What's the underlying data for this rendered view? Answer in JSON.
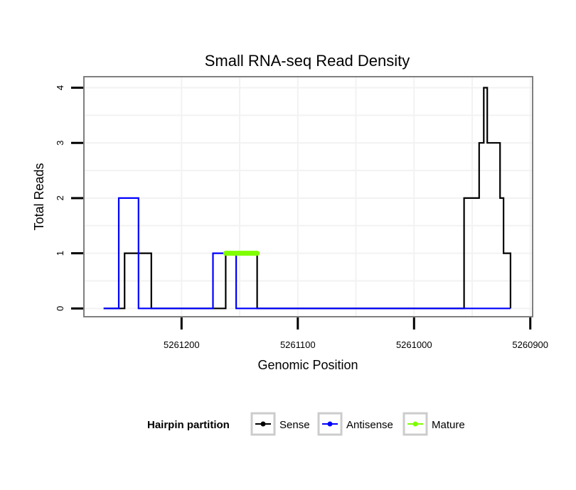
{
  "chart_data": {
    "type": "line",
    "title": "Small RNA-seq Read Density",
    "xlabel": "Genomic Position",
    "ylabel": "Total Reads",
    "x_reversed": true,
    "xlim": [
      5261284,
      5260898
    ],
    "ylim": [
      -0.15,
      4.2
    ],
    "x_ticks": [
      5261200,
      5261100,
      5261000,
      5260900
    ],
    "x_tick_labels": [
      "5261200",
      "5261100",
      "5261000",
      "5260900"
    ],
    "y_ticks": [
      0,
      1,
      2,
      3,
      4
    ],
    "y_tick_labels": [
      "0",
      "1",
      "2",
      "3",
      "4"
    ],
    "grid": true,
    "legend": {
      "title": "Hairpin partition",
      "placement": "bottom",
      "entries": [
        "Sense",
        "Antisense",
        "Mature"
      ]
    },
    "series": [
      {
        "name": "Sense",
        "color": "#000000",
        "step": true,
        "points": [
          [
            5261267,
            0
          ],
          [
            5261249,
            0
          ],
          [
            5261249,
            1
          ],
          [
            5261226,
            1
          ],
          [
            5261226,
            0
          ],
          [
            5261162,
            0
          ],
          [
            5261162,
            1
          ],
          [
            5261135,
            1
          ],
          [
            5261135,
            0
          ],
          [
            5260957,
            0
          ],
          [
            5260957,
            2
          ],
          [
            5260944,
            2
          ],
          [
            5260944,
            3
          ],
          [
            5260940,
            3
          ],
          [
            5260940,
            4
          ],
          [
            5260937,
            4
          ],
          [
            5260937,
            3
          ],
          [
            5260926,
            3
          ],
          [
            5260926,
            2
          ],
          [
            5260923,
            2
          ],
          [
            5260923,
            1
          ],
          [
            5260917,
            1
          ],
          [
            5260917,
            0
          ]
        ]
      },
      {
        "name": "Antisense",
        "color": "#0000ff",
        "step": true,
        "points": [
          [
            5261267,
            0
          ],
          [
            5261254,
            0
          ],
          [
            5261254,
            2
          ],
          [
            5261237,
            2
          ],
          [
            5261237,
            0
          ],
          [
            5261173,
            0
          ],
          [
            5261173,
            1
          ],
          [
            5261153,
            1
          ],
          [
            5261153,
            0
          ],
          [
            5260917,
            0
          ]
        ]
      },
      {
        "name": "Mature",
        "color": "#7fff00",
        "step": true,
        "points": [
          [
            5261162,
            1
          ],
          [
            5261135,
            1
          ]
        ]
      }
    ]
  },
  "colors": {
    "panel_border": "#7f7f7f",
    "grid": "#f2f2f2",
    "legend_key_border": "#cccccc"
  }
}
